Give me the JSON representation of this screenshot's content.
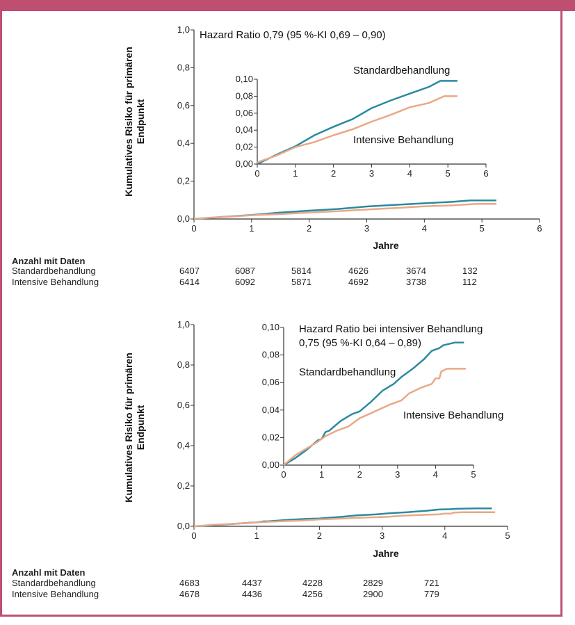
{
  "colors": {
    "frame": "#bf4f71",
    "standard": "#2a8aa0",
    "intensive": "#e9a888",
    "axis": "#333333"
  },
  "chart_data": [
    {
      "type": "line",
      "id": "top",
      "title": "Hazard Ratio 0,79 (95 %-KI 0,69 – 0,90)",
      "xlabel": "Jahre",
      "ylabel": "Kumulatives Risiko für primären Endpunkt",
      "ylabel_lines": [
        "Kumulatives Risiko für primären",
        "Endpunkt"
      ],
      "xlim": [
        0,
        6
      ],
      "ylim": [
        0,
        1.0
      ],
      "x_ticks": [
        "0",
        "1",
        "2",
        "3",
        "4",
        "5",
        "6"
      ],
      "y_ticks": [
        "0,0",
        "0,2",
        "0,4",
        "0,6",
        "0,8",
        "1,0"
      ],
      "series": [
        {
          "name": "Standardbehandlung",
          "x": [
            0,
            0.5,
            1,
            1.5,
            2,
            2.5,
            3,
            3.5,
            4,
            4.5,
            4.8,
            5.25
          ],
          "y": [
            0,
            0.011,
            0.021,
            0.034,
            0.044,
            0.053,
            0.066,
            0.075,
            0.083,
            0.091,
            0.098,
            0.098
          ]
        },
        {
          "name": "Intensive Behandlung",
          "x": [
            0,
            0.5,
            1,
            1.5,
            2,
            2.5,
            3,
            3.5,
            4,
            4.5,
            4.9,
            5.25
          ],
          "y": [
            0.002,
            0.01,
            0.02,
            0.026,
            0.034,
            0.041,
            0.05,
            0.058,
            0.067,
            0.072,
            0.08,
            0.08
          ]
        }
      ],
      "inset": {
        "xlim": [
          0,
          6
        ],
        "ylim": [
          0,
          0.1
        ],
        "x_ticks": [
          "0",
          "1",
          "2",
          "3",
          "4",
          "5",
          "6"
        ],
        "y_ticks": [
          "0,00",
          "0,02",
          "0,04",
          "0,06",
          "0,08",
          "0,10"
        ],
        "labels": {
          "standard": "Standardbehandlung",
          "intensive": "Intensive Behandlung"
        }
      },
      "risk_table": {
        "header": "Anzahl mit Daten",
        "rows": [
          {
            "label": "Standardbehandlung",
            "values": [
              "6407",
              "6087",
              "5814",
              "4626",
              "3674",
              "132"
            ]
          },
          {
            "label": "Intensive Behandlung",
            "values": [
              "6414",
              "6092",
              "5871",
              "4692",
              "3738",
              "112"
            ]
          }
        ]
      }
    },
    {
      "type": "line",
      "id": "bottom",
      "title": "Hazard Ratio bei intensiver Behandlung",
      "subtitle": "0,75 (95 %-KI 0,64 – 0,89)",
      "xlabel": "Jahre",
      "ylabel": "Kumulatives Risiko für primären Endpunkt",
      "ylabel_lines": [
        "Kumulatives Risiko für primären",
        "Endpunkt"
      ],
      "xlim": [
        0,
        5
      ],
      "ylim": [
        0,
        1.0
      ],
      "x_ticks": [
        "0",
        "1",
        "2",
        "3",
        "4",
        "5"
      ],
      "y_ticks": [
        "0,0",
        "0,2",
        "0,4",
        "0,6",
        "0,8",
        "1,0"
      ],
      "series": [
        {
          "name": "Standardbehandlung",
          "x": [
            0,
            0.3,
            0.6,
            0.9,
            1.0,
            1.1,
            1.2,
            1.5,
            1.8,
            2.0,
            2.3,
            2.6,
            2.9,
            3.1,
            3.4,
            3.7,
            3.9,
            4.1,
            4.2,
            4.5,
            4.75
          ],
          "y": [
            0,
            0.005,
            0.011,
            0.018,
            0.019,
            0.024,
            0.025,
            0.032,
            0.037,
            0.039,
            0.046,
            0.054,
            0.059,
            0.064,
            0.07,
            0.077,
            0.083,
            0.085,
            0.087,
            0.089,
            0.089
          ]
        },
        {
          "name": "Intensive Behandlung",
          "x": [
            0,
            0.3,
            0.6,
            0.9,
            1.1,
            1.4,
            1.7,
            2.0,
            2.4,
            2.8,
            3.1,
            3.3,
            3.6,
            3.9,
            4.0,
            4.1,
            4.15,
            4.3,
            4.5,
            4.8
          ],
          "y": [
            0.0,
            0.007,
            0.012,
            0.017,
            0.021,
            0.025,
            0.028,
            0.034,
            0.039,
            0.044,
            0.047,
            0.052,
            0.056,
            0.059,
            0.063,
            0.063,
            0.068,
            0.07,
            0.07,
            0.07
          ]
        }
      ],
      "inset": {
        "xlim": [
          0,
          5
        ],
        "ylim": [
          0,
          0.1
        ],
        "x_ticks": [
          "0",
          "1",
          "2",
          "3",
          "4",
          "5"
        ],
        "y_ticks": [
          "0,00",
          "0,02",
          "0,04",
          "0,06",
          "0,08",
          "0,10"
        ],
        "labels": {
          "standard": "Standardbehandlung",
          "intensive": "Intensive Behandlung"
        }
      },
      "risk_table": {
        "header": "Anzahl mit Daten",
        "rows": [
          {
            "label": "Standardbehandlung",
            "values": [
              "4683",
              "4437",
              "4228",
              "2829",
              "721"
            ]
          },
          {
            "label": "Intensive Behandlung",
            "values": [
              "4678",
              "4436",
              "4256",
              "2900",
              "779"
            ]
          }
        ]
      }
    }
  ]
}
